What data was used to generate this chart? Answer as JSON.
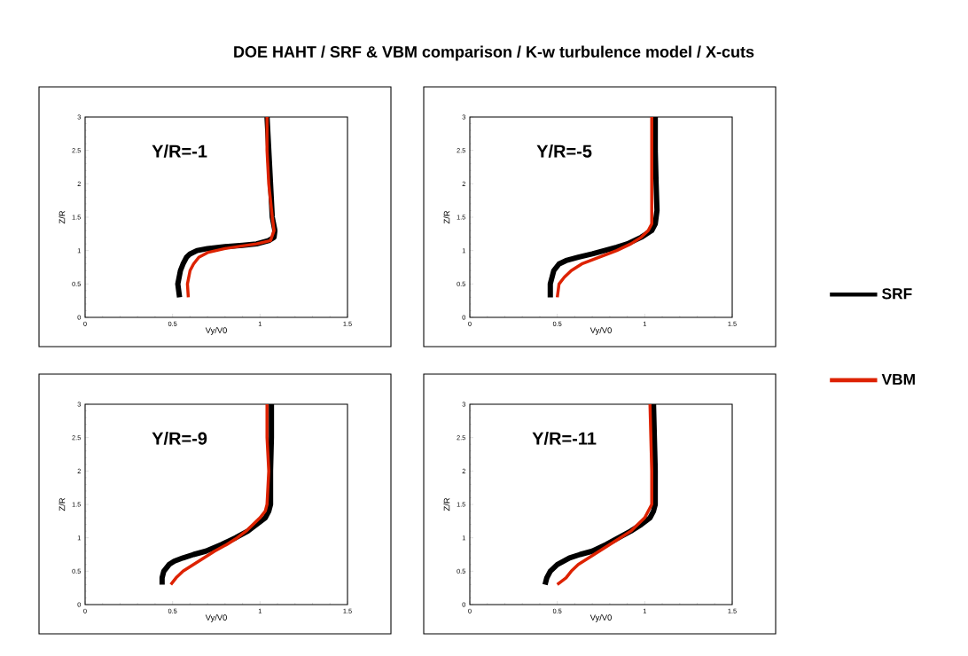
{
  "chart_data": [
    {
      "type": "line",
      "title": "DOE HAHT / SRF & VBM comparison / K-w turbulence model / X-cuts",
      "annotations": [
        "Y/R=-1"
      ],
      "xlabel": "Vy/V0",
      "ylabel": "Z/R",
      "xlim": [
        0,
        1.5
      ],
      "ylim": [
        0,
        3
      ],
      "xticks": [
        0,
        0.5,
        1,
        1.5
      ],
      "yticks": [
        0,
        0.5,
        1,
        1.5,
        2,
        2.5,
        3
      ],
      "line_style": "solid",
      "legend": false,
      "series": [
        {
          "color": "#000000",
          "x": [
            0.54,
            0.53,
            0.545,
            0.56,
            0.58,
            0.6,
            0.64,
            0.7,
            0.8,
            0.9,
            0.98,
            1.05,
            1.08,
            1.085,
            1.07,
            1.06,
            1.05,
            1.04
          ],
          "values": [
            0.3,
            0.5,
            0.7,
            0.8,
            0.9,
            0.95,
            1.0,
            1.03,
            1.06,
            1.08,
            1.1,
            1.15,
            1.2,
            1.3,
            1.5,
            2.0,
            2.5,
            3.0
          ]
        },
        {
          "color": "#dd2200",
          "x": [
            0.59,
            0.585,
            0.6,
            0.62,
            0.65,
            0.7,
            0.8,
            0.9,
            0.98,
            1.06,
            1.08,
            1.07,
            1.05,
            1.04,
            1.04
          ],
          "values": [
            0.3,
            0.5,
            0.7,
            0.8,
            0.9,
            0.97,
            1.03,
            1.07,
            1.1,
            1.15,
            1.3,
            1.5,
            2.0,
            2.5,
            3.0
          ]
        }
      ]
    },
    {
      "type": "line",
      "annotations": [
        "Y/R=-5"
      ],
      "xlabel": "Vy/V0",
      "ylabel": "Z/R",
      "xlim": [
        0,
        1.5
      ],
      "ylim": [
        0,
        3
      ],
      "xticks": [
        0,
        0.5,
        1,
        1.5
      ],
      "yticks": [
        0,
        0.5,
        1,
        1.5,
        2,
        2.5,
        3
      ],
      "line_style": "solid",
      "legend": "right",
      "series": [
        {
          "name": "SRF",
          "color": "#000000",
          "x": [
            0.46,
            0.46,
            0.48,
            0.51,
            0.55,
            0.62,
            0.7,
            0.77,
            0.84,
            0.9,
            0.98,
            1.04,
            1.06,
            1.07,
            1.065,
            1.06,
            1.06
          ],
          "values": [
            0.3,
            0.5,
            0.7,
            0.8,
            0.85,
            0.9,
            0.95,
            1.0,
            1.05,
            1.1,
            1.2,
            1.3,
            1.4,
            1.6,
            2.0,
            2.5,
            3.0
          ]
        },
        {
          "name": "VBM",
          "color": "#dd2200",
          "x": [
            0.5,
            0.51,
            0.54,
            0.58,
            0.64,
            0.74,
            0.84,
            0.92,
            0.98,
            1.02,
            1.04,
            1.04,
            1.04,
            1.04,
            1.04
          ],
          "values": [
            0.3,
            0.5,
            0.6,
            0.7,
            0.8,
            0.9,
            1.0,
            1.1,
            1.2,
            1.3,
            1.4,
            1.6,
            2.0,
            2.5,
            3.0
          ]
        }
      ]
    },
    {
      "type": "line",
      "annotations": [
        "Y/R=-9"
      ],
      "xlabel": "Vy/V0",
      "ylabel": "Z/R",
      "xlim": [
        0,
        1.5
      ],
      "ylim": [
        0,
        3
      ],
      "xticks": [
        0,
        0.5,
        1,
        1.5
      ],
      "yticks": [
        0,
        0.5,
        1,
        1.5,
        2,
        2.5,
        3
      ],
      "line_style": "solid",
      "legend": false,
      "series": [
        {
          "color": "#000000",
          "x": [
            0.44,
            0.44,
            0.45,
            0.48,
            0.51,
            0.56,
            0.62,
            0.69,
            0.78,
            0.86,
            0.93,
            0.98,
            1.03,
            1.05,
            1.06,
            1.06,
            1.065,
            1.065
          ],
          "values": [
            0.3,
            0.4,
            0.5,
            0.6,
            0.65,
            0.7,
            0.75,
            0.8,
            0.9,
            1.0,
            1.1,
            1.2,
            1.3,
            1.4,
            1.5,
            2.0,
            2.5,
            3.0
          ]
        },
        {
          "color": "#dd2200",
          "x": [
            0.49,
            0.52,
            0.56,
            0.62,
            0.68,
            0.74,
            0.81,
            0.87,
            0.92,
            0.96,
            1.0,
            1.03,
            1.04,
            1.05,
            1.04,
            1.04
          ],
          "values": [
            0.3,
            0.4,
            0.5,
            0.6,
            0.7,
            0.8,
            0.9,
            1.0,
            1.1,
            1.2,
            1.3,
            1.4,
            1.5,
            2.0,
            2.5,
            3.0
          ]
        }
      ]
    },
    {
      "type": "line",
      "annotations": [
        "Y/R=-11"
      ],
      "xlabel": "Vy/V0",
      "ylabel": "Z/R",
      "xlim": [
        0,
        1.5
      ],
      "ylim": [
        0,
        3
      ],
      "xticks": [
        0,
        0.5,
        1,
        1.5
      ],
      "yticks": [
        0,
        0.5,
        1,
        1.5,
        2,
        2.5,
        3
      ],
      "line_style": "solid",
      "legend": false,
      "series": [
        {
          "color": "#000000",
          "x": [
            0.43,
            0.44,
            0.46,
            0.5,
            0.57,
            0.63,
            0.7,
            0.78,
            0.85,
            0.92,
            0.98,
            1.03,
            1.05,
            1.06,
            1.06,
            1.055,
            1.05
          ],
          "values": [
            0.3,
            0.4,
            0.5,
            0.6,
            0.7,
            0.75,
            0.8,
            0.9,
            1.0,
            1.1,
            1.2,
            1.3,
            1.4,
            1.5,
            2.0,
            2.5,
            3.0
          ]
        },
        {
          "color": "#dd2200",
          "x": [
            0.5,
            0.55,
            0.58,
            0.62,
            0.68,
            0.74,
            0.8,
            0.86,
            0.92,
            0.96,
            1.0,
            1.02,
            1.04,
            1.04,
            1.035,
            1.03
          ],
          "values": [
            0.3,
            0.4,
            0.5,
            0.6,
            0.7,
            0.8,
            0.9,
            1.0,
            1.1,
            1.2,
            1.3,
            1.4,
            1.5,
            2.0,
            2.5,
            3.0
          ]
        }
      ]
    }
  ]
}
